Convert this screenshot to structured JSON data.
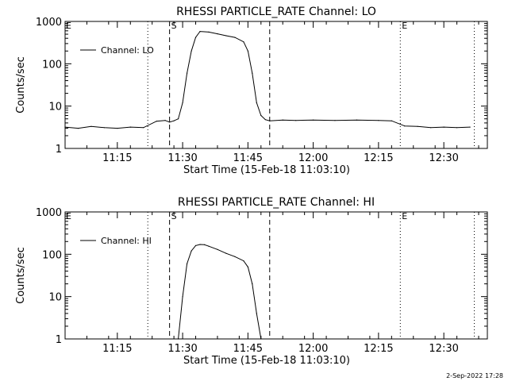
{
  "footer": {
    "timestamp": "2-Sep-2022 17:28"
  },
  "chart_data": [
    {
      "type": "line",
      "title": "RHESSI PARTICLE_RATE Channel: LO",
      "xlabel": "Start Time (15-Feb-18 11:03:10)",
      "ylabel": "Counts/sec",
      "yscale": "log",
      "ylim": [
        1,
        1000
      ],
      "xlim": [
        "11:03",
        "12:40"
      ],
      "x_ticks": [
        "11:15",
        "11:30",
        "11:45",
        "12:00",
        "12:15",
        "12:30"
      ],
      "y_ticks": [
        "1",
        "10",
        "100",
        "1000"
      ],
      "legend": {
        "label": "Channel: LO",
        "position": "top-left"
      },
      "markers": [
        {
          "time": "11:22",
          "style": "dotted",
          "label": ""
        },
        {
          "time": "11:27",
          "style": "dashed",
          "label": "S"
        },
        {
          "time": "11:50",
          "style": "dashed",
          "label": ""
        },
        {
          "time": "12:20",
          "style": "dotted",
          "label": "E"
        },
        {
          "time": "12:37",
          "style": "dotted",
          "label": ""
        }
      ],
      "corner_labels": {
        "left": "E"
      },
      "series": [
        {
          "x": [
            "11:03",
            "11:06",
            "11:09",
            "11:12",
            "11:15",
            "11:18",
            "11:21",
            "11:24",
            "11:26",
            "11:27",
            "11:28",
            "11:29",
            "11:30",
            "11:31",
            "11:32",
            "11:33",
            "11:34",
            "11:36",
            "11:38",
            "11:40",
            "11:42",
            "11:44",
            "11:45",
            "11:46",
            "11:47",
            "11:48",
            "11:49",
            "11:50",
            "11:53",
            "11:56",
            "12:00",
            "12:05",
            "12:10",
            "12:15",
            "12:18",
            "12:21",
            "12:24",
            "12:27",
            "12:30",
            "12:33",
            "12:36"
          ],
          "y": [
            3.2,
            3.0,
            3.3,
            3.1,
            3.0,
            3.2,
            3.1,
            4.4,
            4.6,
            4.2,
            4.5,
            5.0,
            12,
            60,
            200,
            420,
            580,
            560,
            510,
            460,
            420,
            330,
            200,
            60,
            12,
            6,
            4.8,
            4.5,
            4.7,
            4.6,
            4.7,
            4.6,
            4.7,
            4.6,
            4.5,
            3.4,
            3.3,
            3.1,
            3.2,
            3.1,
            3.2
          ]
        }
      ]
    },
    {
      "type": "line",
      "title": "RHESSI PARTICLE_RATE Channel: HI",
      "xlabel": "Start Time (15-Feb-18 11:03:10)",
      "ylabel": "Counts/sec",
      "yscale": "log",
      "ylim": [
        1,
        1000
      ],
      "xlim": [
        "11:03",
        "12:40"
      ],
      "x_ticks": [
        "11:15",
        "11:30",
        "11:45",
        "12:00",
        "12:15",
        "12:30"
      ],
      "y_ticks": [
        "1",
        "10",
        "100",
        "1000"
      ],
      "legend": {
        "label": "Channel: HI",
        "position": "top-left"
      },
      "markers": [
        {
          "time": "11:22",
          "style": "dotted",
          "label": ""
        },
        {
          "time": "11:27",
          "style": "dashed",
          "label": "S"
        },
        {
          "time": "11:50",
          "style": "dashed",
          "label": ""
        },
        {
          "time": "12:20",
          "style": "dotted",
          "label": "E"
        },
        {
          "time": "12:37",
          "style": "dotted",
          "label": ""
        }
      ],
      "corner_labels": {
        "left": "E"
      },
      "series": [
        {
          "x": [
            "11:29",
            "11:30",
            "11:31",
            "11:32",
            "11:33",
            "11:34",
            "11:35",
            "11:36",
            "11:38",
            "11:40",
            "11:42",
            "11:44",
            "11:45",
            "11:46",
            "11:47",
            "11:48"
          ],
          "y": [
            1.0,
            10,
            60,
            120,
            160,
            170,
            168,
            155,
            130,
            105,
            88,
            70,
            50,
            20,
            4,
            1.0
          ]
        }
      ]
    }
  ]
}
